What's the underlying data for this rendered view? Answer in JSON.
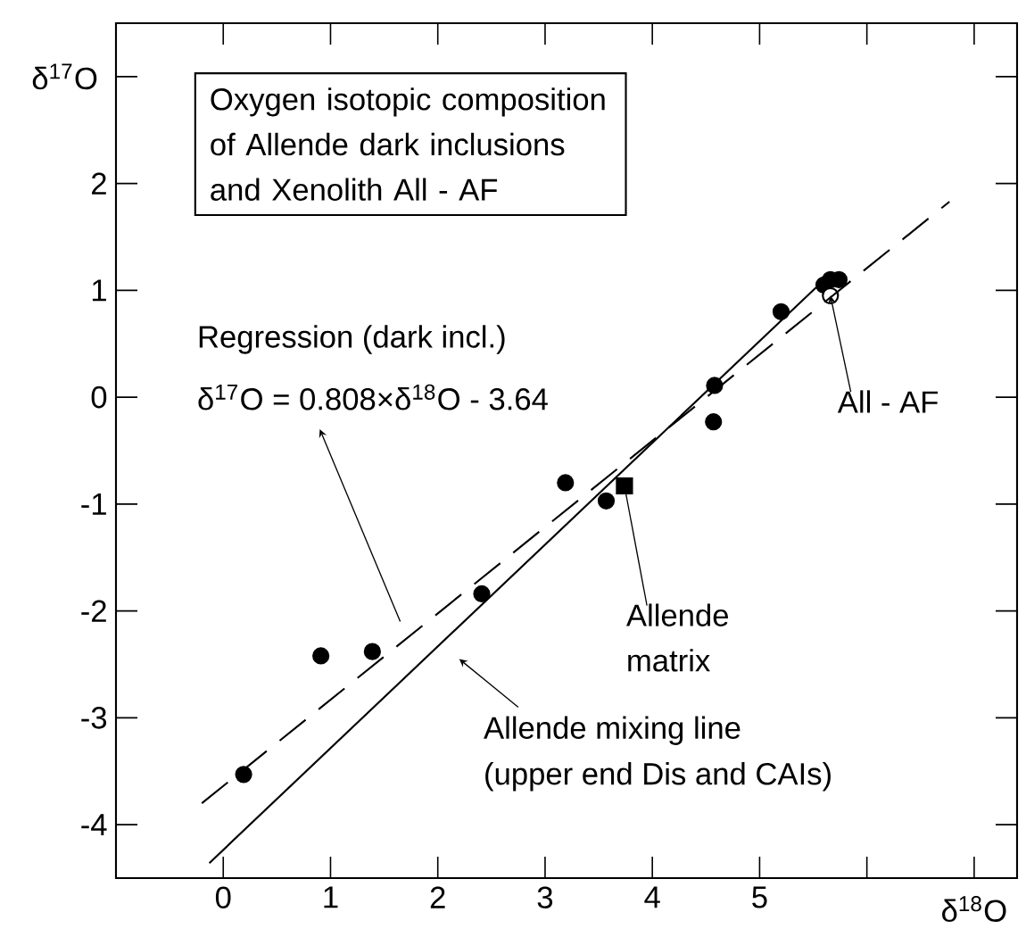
{
  "chart_data": {
    "type": "scatter",
    "title": "Oxygen isotopic composition of Allende dark inclusions and Xenolith All - AF",
    "xlabel": "δ$^{18}$O",
    "ylabel": "δ$^{17}$O",
    "xlim": [
      -1,
      7.4
    ],
    "ylim": [
      -4.5,
      3.5
    ],
    "xticks": [
      0,
      1,
      2,
      3,
      4,
      5,
      {
        "value": 6,
        "label": null
      },
      {
        "value": 7,
        "label": null
      }
    ],
    "yticks": [
      -4,
      -3,
      -2,
      -1,
      0,
      1,
      2,
      {
        "value": 3,
        "label": null
      }
    ],
    "grid": false,
    "series": [
      {
        "marker": "circle",
        "color": "#000000",
        "x": [
          0.19,
          0.91,
          1.39,
          2.41,
          3.19,
          3.57,
          4.58,
          4.57,
          5.2,
          5.6,
          5.66,
          5.74
        ],
        "values": [
          -3.53,
          -2.42,
          -2.38,
          -1.84,
          -0.8,
          -0.97,
          0.11,
          -0.23,
          0.8,
          1.05,
          1.1,
          1.1
        ]
      },
      {
        "marker": "square",
        "color": "#000000",
        "x": [
          3.74
        ],
        "values": [
          -0.83
        ]
      },
      {
        "marker": "circle",
        "color": "#ffffff",
        "x": [
          5.66
        ],
        "values": [
          0.95
        ]
      },
      {
        "type": "line",
        "marker": "none",
        "line_style": "dashed",
        "color": "#000000",
        "x": [
          -0.2,
          6.77
        ],
        "values": [
          -3.8,
          1.83
        ]
      },
      {
        "type": "line",
        "marker": "none",
        "line_style": "solid",
        "color": "#000000",
        "x": [
          -0.13,
          5.53
        ],
        "values": [
          -4.36,
          1.03
        ]
      }
    ],
    "annotations": [
      "Regression (dark incl.)",
      "δ$^{17}$O = 0.808×δ$^{18}$O - 3.64",
      {
        "text": "Allende matrix",
        "x": 3.74,
        "y": -0.83
      },
      {
        "text": "All - AF",
        "x": 5.66,
        "y": 0.95
      },
      "Allende mixing line",
      "(upper end Dis and CAIs)"
    ]
  }
}
